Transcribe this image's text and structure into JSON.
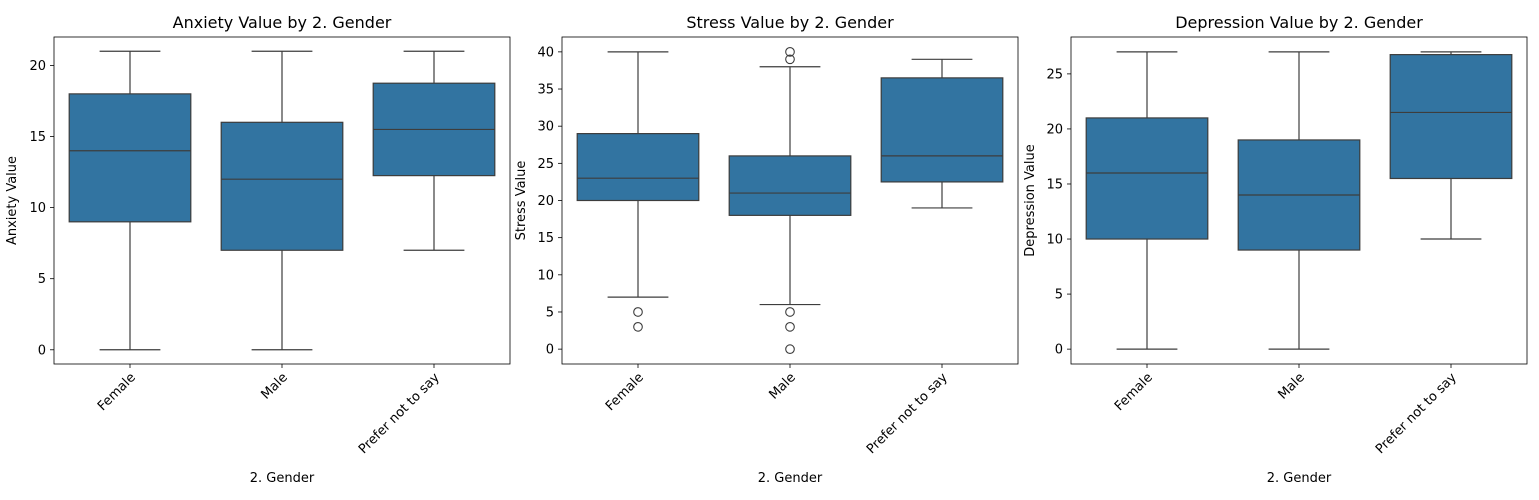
{
  "chart_data": [
    {
      "type": "boxplot",
      "title": "Anxiety Value by 2. Gender",
      "xlabel": "2. Gender",
      "ylabel": "Anxiety Value",
      "ylim": [
        -1,
        22
      ],
      "yticks": [
        0,
        5,
        10,
        15,
        20
      ],
      "color": "#3274a1",
      "categories": [
        "Female",
        "Male",
        "Prefer not to say"
      ],
      "boxes": [
        {
          "whisker_low": 0,
          "q1": 9,
          "median": 14,
          "q3": 18,
          "whisker_high": 21,
          "outliers": []
        },
        {
          "whisker_low": 0,
          "q1": 7,
          "median": 12,
          "q3": 16,
          "whisker_high": 21,
          "outliers": []
        },
        {
          "whisker_low": 7,
          "q1": 12.25,
          "median": 15.5,
          "q3": 18.75,
          "whisker_high": 21,
          "outliers": []
        }
      ]
    },
    {
      "type": "boxplot",
      "title": "Stress Value by 2. Gender",
      "xlabel": "2. Gender",
      "ylabel": "Stress Value",
      "ylim": [
        -2,
        42
      ],
      "yticks": [
        0,
        5,
        10,
        15,
        20,
        25,
        30,
        35,
        40
      ],
      "color": "#3274a1",
      "categories": [
        "Female",
        "Male",
        "Prefer not to say"
      ],
      "boxes": [
        {
          "whisker_low": 7,
          "q1": 20,
          "median": 23,
          "q3": 29,
          "whisker_high": 40,
          "outliers": [
            5,
            3
          ]
        },
        {
          "whisker_low": 6,
          "q1": 18,
          "median": 21,
          "q3": 26,
          "whisker_high": 38,
          "outliers": [
            40,
            39,
            5,
            3,
            0
          ]
        },
        {
          "whisker_low": 19,
          "q1": 22.5,
          "median": 26,
          "q3": 36.5,
          "whisker_high": 39,
          "outliers": []
        }
      ]
    },
    {
      "type": "boxplot",
      "title": "Depression Value by 2. Gender",
      "xlabel": "2. Gender",
      "ylabel": "Depression Value",
      "ylim": [
        -1.35,
        28.35
      ],
      "yticks": [
        0,
        5,
        10,
        15,
        20,
        25
      ],
      "color": "#3274a1",
      "categories": [
        "Female",
        "Male",
        "Prefer not to say"
      ],
      "boxes": [
        {
          "whisker_low": 0,
          "q1": 10,
          "median": 16,
          "q3": 21,
          "whisker_high": 27,
          "outliers": []
        },
        {
          "whisker_low": 0,
          "q1": 9,
          "median": 14,
          "q3": 19,
          "whisker_high": 27,
          "outliers": []
        },
        {
          "whisker_low": 10,
          "q1": 15.5,
          "median": 21.5,
          "q3": 26.75,
          "whisker_high": 27,
          "outliers": []
        }
      ]
    }
  ]
}
